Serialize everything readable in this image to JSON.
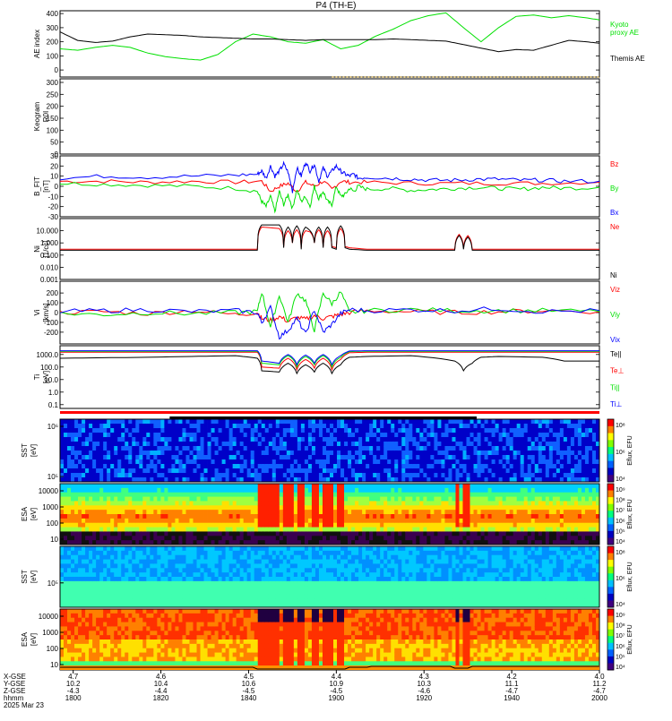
{
  "title": "P4 (TH-E)",
  "colors": {
    "frame": "#000000",
    "green": "#00e000",
    "red": "#ff0000",
    "blue": "#0000ff",
    "orange": "#d4a017"
  },
  "time_axis": {
    "range": [
      "17:57",
      "20:00"
    ],
    "ticks": [
      {
        "time": "1800",
        "xgse": "4.7",
        "ygse": "10.2",
        "zgse": "-4.3"
      },
      {
        "time": "1820",
        "xgse": "4.6",
        "ygse": "10.4",
        "zgse": "-4.4"
      },
      {
        "time": "1840",
        "xgse": "4.5",
        "ygse": "10.6",
        "zgse": "-4.5"
      },
      {
        "time": "1900",
        "xgse": "4.4",
        "ygse": "10.9",
        "zgse": "-4.5"
      },
      {
        "time": "1920",
        "xgse": "4.3",
        "ygse": "10.3",
        "zgse": "-4.6"
      },
      {
        "time": "1940",
        "xgse": "4.2",
        "ygse": "11.1",
        "zgse": "-4.7"
      },
      {
        "time": "2000",
        "xgse": "4.0",
        "ygse": "11.2",
        "zgse": "-4.7"
      }
    ],
    "row_labels": [
      "X-GSE",
      "Y-GSE",
      "Z-GSE",
      "hhmm"
    ],
    "date": "2025 Mar 23"
  },
  "chart_data": [
    {
      "type": "line",
      "name": "ae",
      "ylabel": "AE index",
      "ylim": [
        -50,
        420
      ],
      "yticks": [
        0,
        100,
        200,
        300,
        400
      ],
      "tick_labels": [
        "0",
        "100",
        "200",
        "300",
        "400"
      ],
      "series": [
        {
          "name": "Kyoto proxy AE",
          "label_lines": [
            "Kyoto",
            "proxy AE"
          ],
          "color": "#00e000",
          "x": [
            0,
            4,
            8,
            12,
            16,
            20,
            24,
            28,
            32,
            36,
            40,
            44,
            48,
            52,
            56,
            60,
            64,
            68,
            72,
            76,
            80,
            84,
            88,
            92,
            96,
            100,
            104,
            108,
            112,
            116,
            120,
            123
          ],
          "y": [
            150,
            140,
            160,
            175,
            160,
            120,
            95,
            80,
            70,
            110,
            200,
            255,
            235,
            200,
            190,
            215,
            150,
            175,
            240,
            290,
            350,
            385,
            405,
            300,
            200,
            300,
            380,
            390,
            370,
            385,
            370,
            355
          ]
        },
        {
          "name": "Themis AE",
          "label_lines": [
            "Themis AE"
          ],
          "color": "#000000",
          "x": [
            0,
            4,
            8,
            12,
            16,
            20,
            24,
            28,
            32,
            36,
            40,
            44,
            48,
            52,
            56,
            60,
            64,
            68,
            72,
            76,
            80,
            84,
            88,
            92,
            96,
            100,
            104,
            108,
            112,
            116,
            120,
            123
          ],
          "y": [
            270,
            210,
            195,
            205,
            235,
            255,
            250,
            245,
            235,
            230,
            225,
            220,
            220,
            215,
            210,
            215,
            215,
            215,
            215,
            220,
            215,
            210,
            205,
            180,
            155,
            130,
            145,
            140,
            175,
            210,
            200,
            190
          ]
        }
      ]
    },
    {
      "type": "line",
      "name": "keogram",
      "ylabel": "Keogram",
      "ylabel2": "R0I",
      "ylim": [
        0,
        315
      ],
      "yticks": [
        0,
        50,
        100,
        150,
        200,
        250,
        300
      ],
      "tick_labels": [
        "0",
        "50",
        "100",
        "150",
        "200",
        "250",
        "300"
      ],
      "series": []
    },
    {
      "type": "line",
      "name": "bfield",
      "ylabel": "B_FIT",
      "ylabel2": "[nT]",
      "ylim": [
        -30,
        30
      ],
      "yticks": [
        -30,
        -20,
        -10,
        0,
        10,
        20,
        30
      ],
      "tick_labels": [
        "-30",
        "-20",
        "-10",
        "0",
        "10",
        "20",
        "30"
      ],
      "series": [
        {
          "name": "Bz",
          "color": "#ff0000",
          "x": [
            0,
            10,
            20,
            30,
            40,
            46,
            48,
            50,
            52,
            54,
            56,
            58,
            60,
            62,
            64,
            66,
            70,
            80,
            90,
            100,
            110,
            123
          ],
          "y": [
            5,
            5,
            4,
            5,
            4,
            5,
            -5,
            0,
            3,
            -5,
            4,
            0,
            5,
            -3,
            5,
            4,
            4,
            3,
            3,
            3,
            3,
            4
          ]
        },
        {
          "name": "By",
          "color": "#00e000",
          "x": [
            0,
            10,
            20,
            30,
            40,
            45,
            46,
            47,
            48,
            49,
            50,
            51,
            52,
            53,
            54,
            55,
            56,
            57,
            58,
            59,
            60,
            61,
            62,
            63,
            64,
            65,
            66,
            67,
            68,
            70,
            75,
            80,
            85,
            90,
            95,
            100,
            105,
            110,
            115,
            123
          ],
          "y": [
            3,
            2,
            1,
            0,
            -2,
            -5,
            -15,
            -20,
            -10,
            -25,
            -5,
            -18,
            -8,
            -22,
            -3,
            -15,
            -10,
            -20,
            0,
            -12,
            -5,
            -15,
            -18,
            0,
            -10,
            -8,
            -2,
            -5,
            0,
            -3,
            -2,
            -4,
            -3,
            -2,
            -1,
            -2,
            -3,
            -1,
            -2,
            -1
          ]
        },
        {
          "name": "Bx",
          "color": "#0000ff",
          "x": [
            0,
            10,
            20,
            30,
            40,
            45,
            46,
            47,
            48,
            49,
            50,
            51,
            52,
            53,
            54,
            55,
            56,
            57,
            58,
            59,
            60,
            61,
            62,
            63,
            64,
            65,
            66,
            67,
            68,
            70,
            75,
            80,
            85,
            90,
            95,
            100,
            105,
            110,
            115,
            123
          ],
          "y": [
            8,
            10,
            9,
            10,
            11,
            12,
            15,
            8,
            20,
            10,
            15,
            22,
            14,
            -5,
            18,
            10,
            24,
            15,
            22,
            5,
            18,
            10,
            15,
            20,
            15,
            12,
            10,
            12,
            8,
            9,
            8,
            7,
            6,
            6,
            7,
            7,
            6,
            6,
            5,
            5
          ]
        }
      ]
    },
    {
      "type": "line",
      "name": "density",
      "ylabel": "Ni",
      "ylabel2": "[1/cc]",
      "scale": "log",
      "ylim": [
        0.001,
        100
      ],
      "yticks": [
        0.001,
        0.01,
        0.1,
        1,
        10
      ],
      "tick_labels": [
        "0.001",
        "0.010",
        "0.100",
        "1.000",
        "10.000"
      ],
      "series": [
        {
          "name": "Ne",
          "color": "#ff0000",
          "x": [
            0,
            20,
            40,
            45,
            46,
            50,
            51,
            52,
            53,
            54,
            55,
            56,
            57,
            58,
            59,
            60,
            61,
            62,
            63,
            64,
            65,
            66,
            70,
            80,
            90,
            91,
            92,
            93,
            94,
            95,
            100,
            110,
            123
          ],
          "y": [
            0.3,
            0.3,
            0.3,
            0.3,
            20,
            15,
            0.5,
            10,
            1,
            12,
            0.4,
            10,
            8,
            1,
            12,
            0.5,
            10,
            0.5,
            0.4,
            15,
            0.5,
            0.4,
            0.3,
            0.3,
            0.3,
            5,
            0.4,
            4,
            0.3,
            0.3,
            0.3,
            0.3,
            0.3
          ]
        },
        {
          "name": "Ni",
          "color": "#000000",
          "x": [
            0,
            20,
            40,
            45,
            46,
            50,
            51,
            52,
            53,
            54,
            55,
            56,
            57,
            58,
            59,
            60,
            61,
            62,
            63,
            64,
            65,
            66,
            70,
            80,
            90,
            91,
            92,
            93,
            94,
            95,
            100,
            110,
            123
          ],
          "y": [
            0.25,
            0.25,
            0.25,
            0.25,
            30,
            30,
            0.4,
            20,
            1,
            25,
            0.3,
            20,
            10,
            1,
            20,
            0.4,
            20,
            0.4,
            0.3,
            25,
            0.4,
            0.3,
            0.25,
            0.25,
            0.25,
            4,
            0.3,
            3,
            0.25,
            0.25,
            0.25,
            0.25,
            0.25
          ]
        }
      ]
    },
    {
      "type": "line",
      "name": "velocity",
      "ylabel": "Vi",
      "ylabel2": "[km/s]",
      "ylim": [
        -320,
        320
      ],
      "yticks": [
        -200,
        -100,
        0,
        100,
        200
      ],
      "tick_labels": [
        "-200",
        "-100",
        "0",
        "100",
        "200"
      ],
      "series": [
        {
          "name": "Viz",
          "color": "#ff0000",
          "x": [
            0,
            10,
            20,
            30,
            40,
            45,
            46,
            48,
            50,
            52,
            54,
            56,
            58,
            60,
            62,
            64,
            66,
            70,
            80,
            90,
            100,
            110,
            123
          ],
          "y": [
            0,
            10,
            -10,
            20,
            -20,
            0,
            -60,
            -80,
            -40,
            -90,
            -50,
            -70,
            -30,
            -60,
            -40,
            -20,
            0,
            20,
            10,
            0,
            10,
            20,
            10
          ]
        },
        {
          "name": "Viy",
          "color": "#00e000",
          "x": [
            0,
            10,
            20,
            30,
            40,
            45,
            46,
            48,
            50,
            52,
            54,
            56,
            58,
            60,
            62,
            64,
            66,
            70,
            80,
            90,
            100,
            110,
            123
          ],
          "y": [
            -10,
            -20,
            0,
            -10,
            0,
            10,
            210,
            -150,
            180,
            -100,
            200,
            120,
            -180,
            200,
            90,
            210,
            0,
            20,
            30,
            20,
            20,
            20,
            10
          ]
        },
        {
          "name": "Vix",
          "color": "#0000ff",
          "x": [
            0,
            10,
            20,
            30,
            40,
            45,
            46,
            48,
            50,
            52,
            54,
            56,
            58,
            60,
            62,
            64,
            66,
            70,
            80,
            90,
            100,
            110,
            123
          ],
          "y": [
            10,
            20,
            30,
            10,
            20,
            0,
            -100,
            50,
            -250,
            -180,
            -60,
            -220,
            30,
            -200,
            -120,
            -10,
            30,
            20,
            30,
            20,
            40,
            10,
            20
          ]
        }
      ]
    },
    {
      "type": "line",
      "name": "temperature",
      "ylabel": "Ti",
      "ylabel2": "[eV]",
      "scale": "log",
      "ylim": [
        0.05,
        5000
      ],
      "yticks": [
        0.1,
        1,
        10,
        100,
        1000
      ],
      "tick_labels": [
        "0.1",
        "1.0",
        "10.0",
        "100.0",
        "1000.0"
      ],
      "series": [
        {
          "name": "Te||",
          "color": "#000000",
          "x": [
            0,
            10,
            20,
            30,
            40,
            45,
            46,
            50,
            52,
            54,
            56,
            58,
            60,
            62,
            64,
            66,
            70,
            80,
            90,
            92,
            94,
            96,
            100,
            110,
            115,
            123
          ],
          "y": [
            500,
            550,
            600,
            700,
            800,
            500,
            50,
            40,
            200,
            30,
            150,
            40,
            200,
            30,
            150,
            600,
            700,
            800,
            300,
            50,
            200,
            600,
            700,
            600,
            300,
            300
          ]
        },
        {
          "name": "Te⊥",
          "color": "#ff0000",
          "x": [
            0,
            40,
            45,
            46,
            50,
            52,
            54,
            56,
            58,
            60,
            62,
            64,
            66,
            70,
            123
          ],
          "y": [
            1500,
            1500,
            1500,
            100,
            80,
            500,
            60,
            400,
            80,
            500,
            60,
            400,
            1400,
            1500,
            1500
          ]
        },
        {
          "name": "Ti||",
          "color": "#00e000",
          "x": [
            0,
            40,
            45,
            46,
            50,
            52,
            54,
            56,
            58,
            60,
            62,
            64,
            66,
            70,
            123
          ],
          "y": [
            1800,
            1800,
            1800,
            200,
            150,
            800,
            100,
            700,
            150,
            800,
            100,
            600,
            1700,
            1800,
            1800
          ]
        },
        {
          "name": "Ti⊥",
          "color": "#0000ff",
          "x": [
            0,
            40,
            45,
            46,
            50,
            52,
            54,
            56,
            58,
            60,
            62,
            64,
            66,
            70,
            123
          ],
          "y": [
            2000,
            2000,
            2000,
            300,
            200,
            1000,
            150,
            900,
            200,
            1000,
            150,
            800,
            1900,
            2000,
            2000
          ]
        }
      ]
    },
    {
      "type": "heatmap",
      "name": "sst-electrons",
      "ylabel": "SST",
      "ylabel2": "[eV]",
      "tick_labels": [
        "10⁶",
        "10⁵"
      ],
      "colorbar_label": "Eflux, EFU",
      "colorbar_ticks": [
        "10⁸",
        "10⁶",
        "10⁴"
      ],
      "palette": [
        "#0000c8",
        "#1060ff",
        "#00b0ff"
      ]
    },
    {
      "type": "heatmap",
      "name": "esa-electrons",
      "ylabel": "ESA",
      "ylabel2": "[eV]",
      "tick_labels": [
        "10000",
        "1000",
        "100",
        "10"
      ],
      "colorbar_label": "Eflux, EFU",
      "colorbar_ticks": [
        "10⁹",
        "10⁸",
        "10⁷",
        "10⁶",
        "10⁵",
        "10⁴"
      ],
      "palette": [
        "#00d0ff",
        "#40ff80",
        "#a0ff40",
        "#ffe000",
        "#ff8000",
        "#ff2000"
      ]
    },
    {
      "type": "heatmap",
      "name": "sst-ions",
      "ylabel": "SST",
      "ylabel2": "[eV]",
      "tick_labels": [
        "10⁵"
      ],
      "colorbar_label": "Eflux, EFU",
      "colorbar_ticks": [
        "10⁸",
        "10⁶",
        "10⁴"
      ],
      "palette": [
        "#0090ff",
        "#00c8ff",
        "#40ffb0"
      ]
    },
    {
      "type": "heatmap",
      "name": "esa-ions",
      "ylabel": "ESA",
      "ylabel2": "[eV]",
      "tick_labels": [
        "10000",
        "1000",
        "100",
        "10"
      ],
      "colorbar_label": "Eflux, EFU",
      "colorbar_ticks": [
        "10⁹",
        "10⁸",
        "10⁷",
        "10⁶",
        "10⁵",
        "10⁴"
      ],
      "palette": [
        "#00d0ff",
        "#40ff80",
        "#ffe000",
        "#ff8000",
        "#ff3000"
      ]
    }
  ]
}
